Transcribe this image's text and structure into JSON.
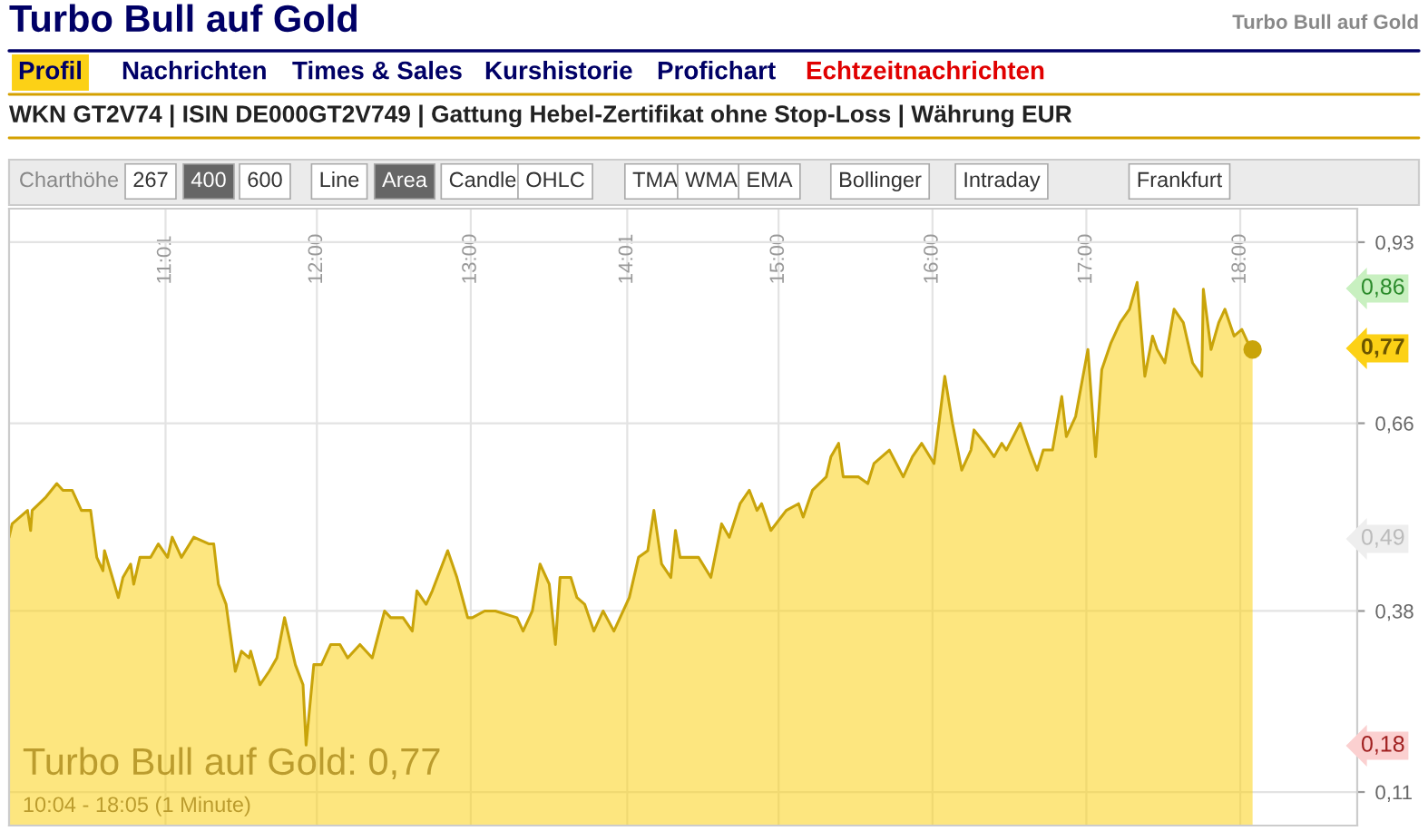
{
  "chart_data": {
    "type": "area",
    "title": "Turbo Bull auf Gold",
    "x": [
      10.0,
      10.02,
      10.12,
      10.14,
      10.15,
      10.24,
      10.31,
      10.35,
      10.41,
      10.47,
      10.53,
      10.57,
      10.61,
      10.62,
      10.71,
      10.74,
      10.79,
      10.81,
      10.85,
      10.92,
      10.97,
      11.03,
      11.06,
      11.12,
      11.2,
      11.3,
      11.33,
      11.36,
      11.41,
      11.47,
      11.51,
      11.56,
      11.57,
      11.63,
      11.69,
      11.74,
      11.79,
      11.86,
      11.91,
      11.93,
      11.98,
      12.03,
      12.09,
      12.15,
      12.2,
      12.28,
      12.36,
      12.44,
      12.48,
      12.56,
      12.62,
      12.65,
      12.71,
      12.75,
      12.85,
      12.91,
      12.98,
      13.01,
      13.09,
      13.16,
      13.3,
      13.34,
      13.4,
      13.45,
      13.51,
      13.55,
      13.58,
      13.65,
      13.69,
      13.74,
      13.8,
      13.86,
      13.93,
      13.97,
      14.03,
      14.09,
      14.15,
      14.19,
      14.24,
      14.3,
      14.33,
      14.36,
      14.42,
      14.48,
      14.56,
      14.63,
      14.68,
      14.75,
      14.81,
      14.86,
      14.89,
      14.95,
      15.05,
      15.13,
      15.16,
      15.22,
      15.31,
      15.34,
      15.39,
      15.42,
      15.52,
      15.58,
      15.62,
      15.72,
      15.81,
      15.87,
      15.93,
      16.01,
      16.08,
      16.13,
      16.19,
      16.25,
      16.27,
      16.34,
      16.4,
      16.45,
      16.48,
      16.57,
      16.63,
      16.68,
      16.72,
      16.78,
      16.84,
      16.87,
      16.93,
      17.01,
      17.06,
      17.1,
      17.16,
      17.22,
      17.28,
      17.33,
      17.38,
      17.43,
      17.46,
      17.51,
      17.57,
      17.63,
      17.69,
      17.75,
      17.76,
      17.81,
      17.86,
      17.9,
      17.96,
      18.01,
      18.05,
      18.08
    ],
    "series": [
      {
        "color": "#c9a40a",
        "values": [
          0.49,
          0.51,
          0.53,
          0.5,
          0.53,
          0.55,
          0.57,
          0.56,
          0.56,
          0.53,
          0.53,
          0.46,
          0.44,
          0.47,
          0.4,
          0.43,
          0.45,
          0.42,
          0.46,
          0.46,
          0.48,
          0.46,
          0.49,
          0.46,
          0.49,
          0.48,
          0.48,
          0.42,
          0.39,
          0.29,
          0.32,
          0.31,
          0.32,
          0.27,
          0.29,
          0.31,
          0.37,
          0.3,
          0.27,
          0.18,
          0.3,
          0.3,
          0.33,
          0.33,
          0.31,
          0.33,
          0.31,
          0.38,
          0.37,
          0.37,
          0.35,
          0.41,
          0.39,
          0.41,
          0.47,
          0.43,
          0.37,
          0.37,
          0.38,
          0.38,
          0.37,
          0.35,
          0.38,
          0.45,
          0.42,
          0.33,
          0.43,
          0.43,
          0.4,
          0.39,
          0.35,
          0.38,
          0.35,
          0.37,
          0.4,
          0.46,
          0.47,
          0.53,
          0.45,
          0.43,
          0.5,
          0.46,
          0.46,
          0.46,
          0.43,
          0.51,
          0.49,
          0.54,
          0.56,
          0.53,
          0.54,
          0.5,
          0.53,
          0.54,
          0.52,
          0.56,
          0.58,
          0.61,
          0.63,
          0.58,
          0.58,
          0.57,
          0.6,
          0.62,
          0.58,
          0.61,
          0.63,
          0.6,
          0.73,
          0.66,
          0.59,
          0.62,
          0.65,
          0.63,
          0.61,
          0.63,
          0.62,
          0.66,
          0.62,
          0.59,
          0.62,
          0.62,
          0.7,
          0.64,
          0.67,
          0.77,
          0.61,
          0.74,
          0.78,
          0.81,
          0.83,
          0.87,
          0.73,
          0.79,
          0.77,
          0.75,
          0.83,
          0.81,
          0.75,
          0.73,
          0.86,
          0.77,
          0.81,
          0.83,
          0.79,
          0.8,
          0.78,
          0.77
        ]
      },
      {
        "type": "scatter",
        "color": "#c9a40a",
        "x": [
          18.08
        ],
        "values": [
          0.77
        ]
      }
    ],
    "xlim": [
      10.0,
      18.76
    ],
    "ylim": [
      0.06,
      0.98
    ],
    "xticks": [
      {
        "value": 11.0167,
        "label": "11:01"
      },
      {
        "value": 12,
        "label": "12:00"
      },
      {
        "value": 13,
        "label": "13:00"
      },
      {
        "value": 14.0167,
        "label": "14:01"
      },
      {
        "value": 15,
        "label": "15:00"
      },
      {
        "value": 16,
        "label": "16:00"
      },
      {
        "value": 17,
        "label": "17:00"
      },
      {
        "value": 18,
        "label": "18:00"
      }
    ],
    "yticks": [
      {
        "value": 0.93,
        "label": "0,93"
      },
      {
        "value": 0.66,
        "label": "0,66"
      },
      {
        "value": 0.38,
        "label": "0,38"
      },
      {
        "value": 0.11,
        "label": "0,11"
      }
    ],
    "grid": true,
    "annotations": [
      "Turbo Bull auf Gold",
      "Profil",
      "Nachrichten",
      "Times & Sales",
      "Kurshistorie",
      "Profichart",
      "Echtzeitnachrichten",
      "WKN GT2V74 | ISIN DE000GT2V749 | Gattung Hebel-Zertifikat ohne Stop-Loss | Währung EUR",
      "Charthöhe",
      "267",
      "400",
      "600",
      "Line",
      "Area",
      "Candle",
      "OHLC",
      "TMA",
      "WMA",
      "EMA",
      "Bollinger",
      "Intraday",
      "Frankfurt",
      "Turbo Bull auf Gold: 0,77",
      "10:04 - 18:05 (1 Minute)",
      "0,86",
      "0,77",
      "0,49",
      "0,18"
    ]
  }
}
